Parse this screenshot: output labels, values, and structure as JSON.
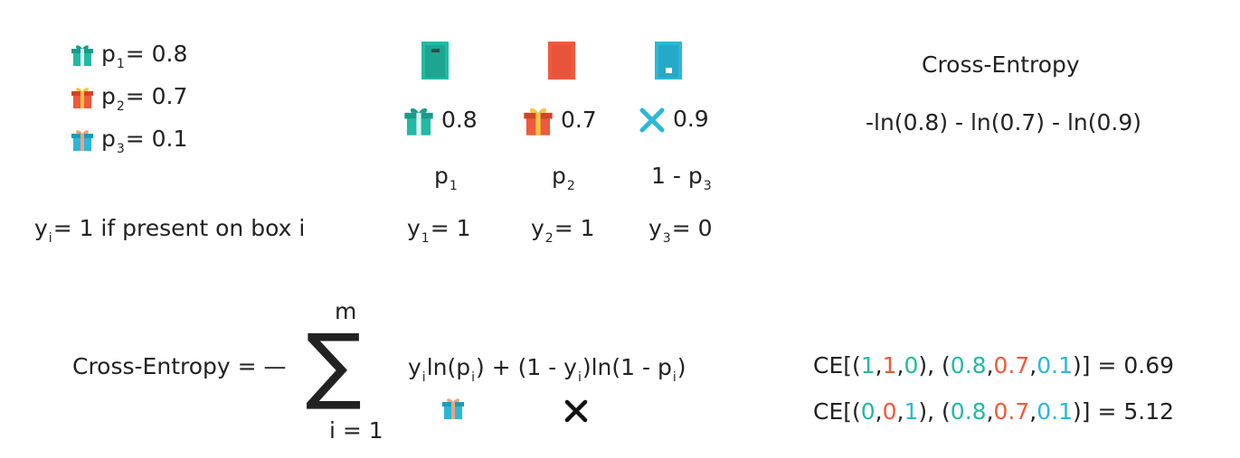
{
  "colors": {
    "teal": "#23b9a4",
    "red": "#ee5a3c",
    "blue": "#2bb8d8",
    "text": "#222222"
  },
  "probabilities": [
    {
      "icon": "gift-teal-icon",
      "var": "p",
      "sub": "1",
      "value": "= 0.8"
    },
    {
      "icon": "gift-red-icon",
      "var": "p",
      "sub": "2",
      "value": "= 0.7"
    },
    {
      "icon": "gift-blue-icon",
      "var": "p",
      "sub": "3",
      "value": "= 0.1"
    }
  ],
  "definition": {
    "var": "y",
    "sub": "i",
    "text": "= 1 if present on box i"
  },
  "boxes": [
    {
      "color": "teal",
      "outcome_icon": "gift-teal-icon",
      "outcome_value": "0.8",
      "prob_var": "p",
      "prob_sub": "1",
      "y_var": "y",
      "y_sub": "1",
      "y_value": "= 1"
    },
    {
      "color": "red",
      "outcome_icon": "gift-red-icon",
      "outcome_value": "0.7",
      "prob_var": "p",
      "prob_sub": "2",
      "y_var": "y",
      "y_sub": "2",
      "y_value": "= 1"
    },
    {
      "color": "blue",
      "outcome_icon": "x-icon",
      "outcome_value": "0.9",
      "prob_prefix": "1 - ",
      "prob_var": "p",
      "prob_sub": "3",
      "y_var": "y",
      "y_sub": "3",
      "y_value": "= 0"
    }
  ],
  "ce_header": "Cross-Entropy",
  "ce_expression": "-ln(0.8) - ln(0.7) - ln(0.9)",
  "formula": {
    "lhs": "Cross-Entropy = —",
    "sigma": "∑",
    "upper": "m",
    "lower": "i = 1",
    "term": {
      "y": "y",
      "i": "i",
      "ln1": "ln(p",
      "close1": ") + (1 - y",
      "ln2": ")ln(1 - p",
      "close2": ")"
    }
  },
  "examples": [
    {
      "prefix": "CE[(",
      "y": [
        "1",
        "1",
        "0"
      ],
      "mid": "), (",
      "p": [
        "0.8",
        "0.7",
        "0.1"
      ],
      "suffix": ")] = 0.69"
    },
    {
      "prefix": "CE[(",
      "y": [
        "0",
        "0",
        "1"
      ],
      "mid": "), (",
      "p": [
        "0.8",
        "0.7",
        "0.1"
      ],
      "suffix": ")] = 5.12"
    }
  ]
}
